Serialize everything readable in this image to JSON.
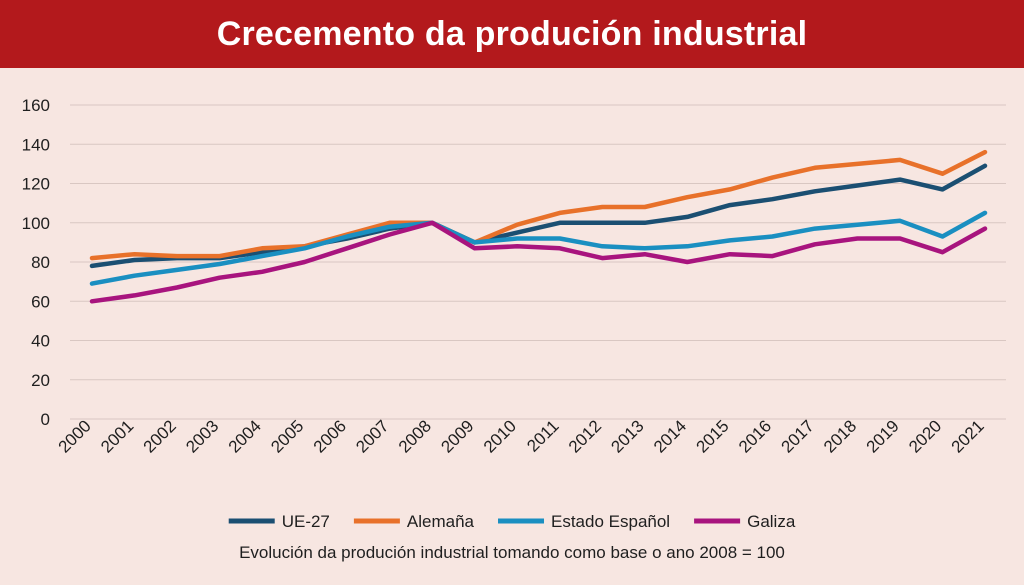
{
  "header": {
    "title": "Crecemento da produción industrial"
  },
  "colors": {
    "header_bg": "#b3191c",
    "background": "#f7e6e1",
    "grid": "#d9c7c2"
  },
  "chart_data": {
    "type": "line",
    "title": "Crecemento da produción industrial",
    "subtitle": "Evolución da produción industrial tomando como base o ano 2008 = 100",
    "xlabel": "",
    "ylabel": "",
    "ylim": [
      0,
      160
    ],
    "yticks": [
      "0",
      "20",
      "40",
      "60",
      "80",
      "100",
      "120",
      "140",
      "160"
    ],
    "categories": [
      "2000",
      "2001",
      "2002",
      "2003",
      "2004",
      "2005",
      "2006",
      "2007",
      "2008",
      "2009",
      "2010",
      "2011",
      "2012",
      "2013",
      "2014",
      "2015",
      "2016",
      "2017",
      "2018",
      "2019",
      "2020",
      "2021"
    ],
    "grid": true,
    "legend_position": "bottom",
    "series": [
      {
        "name": "UE-27",
        "color": "#1b4f72",
        "values": [
          78,
          81,
          82,
          82,
          85,
          88,
          92,
          97,
          100,
          90,
          95,
          100,
          100,
          100,
          103,
          109,
          112,
          116,
          119,
          122,
          117,
          129
        ]
      },
      {
        "name": "Alemaña",
        "color": "#e8712a",
        "values": [
          82,
          84,
          83,
          83,
          87,
          88,
          94,
          100,
          100,
          90,
          99,
          105,
          108,
          108,
          113,
          117,
          123,
          128,
          130,
          132,
          125,
          136
        ]
      },
      {
        "name": "Estado Español",
        "color": "#1a8fc1",
        "values": [
          69,
          73,
          76,
          79,
          83,
          87,
          93,
          98,
          100,
          90,
          92,
          92,
          88,
          87,
          88,
          91,
          93,
          97,
          99,
          101,
          93,
          105
        ]
      },
      {
        "name": "Galiza",
        "color": "#a8147e",
        "values": [
          60,
          63,
          67,
          72,
          75,
          80,
          87,
          94,
          100,
          87,
          88,
          87,
          82,
          84,
          80,
          84,
          83,
          89,
          92,
          92,
          85,
          97
        ]
      }
    ]
  }
}
